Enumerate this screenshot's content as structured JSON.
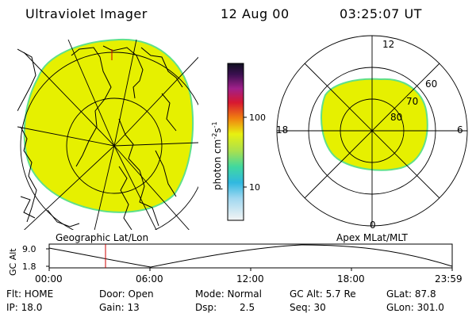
{
  "header": {
    "title": "Ultraviolet Imager",
    "date": "12 Aug 00",
    "time": "03:25:07 UT"
  },
  "left_panel": {
    "caption": "Geographic Lat/Lon"
  },
  "right_panel": {
    "caption": "Apex MLat/MLT",
    "mlt_labels": {
      "top": "12",
      "bottom": "0",
      "left": "18",
      "right": "6"
    },
    "lat_labels": [
      "60",
      "70",
      "80"
    ]
  },
  "colorbar": {
    "unit_label": "photon cm",
    "unit_sup1": "-2",
    "unit_mid": "s",
    "unit_sup2": "-1",
    "tick_labels": [
      "100",
      "10"
    ]
  },
  "timeline": {
    "ylabel": "GC Alt",
    "y_ticks": [
      "9.0",
      "1.8"
    ],
    "x_ticks": [
      "00:00",
      "06:00",
      "12:00",
      "18:00",
      "23:59"
    ],
    "current_time": "03:25"
  },
  "info": {
    "filter": "Flt: HOME",
    "ip": "IP: 18.0",
    "door": "Door: Open",
    "gain": "Gain: 13",
    "mode": "Mode: Normal",
    "dsp_label": "Dsp:",
    "dsp_value": "2.5",
    "gc_alt": "GC Alt: 5.7 Re",
    "seq": "Seq: 30",
    "glat": "GLat:  87.8",
    "glon": "GLon: 301.0"
  },
  "colors": {
    "aurora_fill": "#e6f000",
    "aurora_edge": "#5fe08a",
    "marker": "#cc0000"
  }
}
